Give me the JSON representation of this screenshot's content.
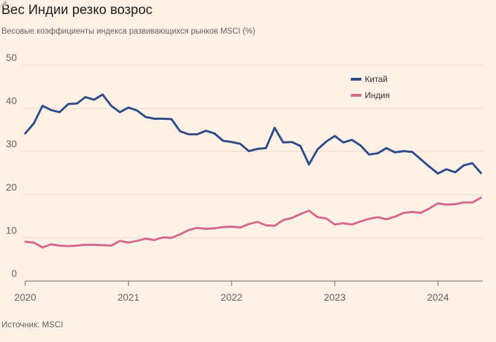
{
  "header": {
    "title": "Вес Индии резко возрос",
    "subtitle": "Весовые коэффициенты индекса развивающихся рынков MSCI (%)"
  },
  "footer": {
    "source": "Источник: MSCI"
  },
  "colors": {
    "background": "#fff1e5",
    "china": "#2e4a87",
    "india": "#d4698e",
    "grid": "#e6d9ce",
    "axis": "#66605c"
  },
  "chart_data": {
    "type": "line",
    "title": "Вес Индии резко возрос",
    "subtitle": "Весовые коэффициенты индекса развивающихся рынков MSCI (%)",
    "xlabel": "",
    "ylabel": "",
    "ylim": [
      0,
      50
    ],
    "xlim": [
      2020.0,
      2024.42
    ],
    "yticks": [
      0,
      10,
      20,
      30,
      40,
      50
    ],
    "xticks": [
      {
        "value": 2020,
        "label": "2020"
      },
      {
        "value": 2021,
        "label": "2021"
      },
      {
        "value": 2022,
        "label": "2022"
      },
      {
        "value": 2023,
        "label": "2023"
      },
      {
        "value": 2024,
        "label": "2024"
      }
    ],
    "legend_position": "top-right",
    "x": [
      2020.0,
      2020.083,
      2020.167,
      2020.25,
      2020.333,
      2020.417,
      2020.5,
      2020.583,
      2020.667,
      2020.75,
      2020.833,
      2020.917,
      2021.0,
      2021.083,
      2021.167,
      2021.25,
      2021.333,
      2021.417,
      2021.5,
      2021.583,
      2021.667,
      2021.75,
      2021.833,
      2021.917,
      2022.0,
      2022.083,
      2022.167,
      2022.25,
      2022.333,
      2022.417,
      2022.5,
      2022.583,
      2022.667,
      2022.75,
      2022.833,
      2022.917,
      2023.0,
      2023.083,
      2023.167,
      2023.25,
      2023.333,
      2023.417,
      2023.5,
      2023.583,
      2023.667,
      2023.75,
      2023.833,
      2023.917,
      2024.0,
      2024.083,
      2024.167,
      2024.25,
      2024.333,
      2024.417
    ],
    "series": [
      {
        "name": "Китай",
        "color": "#2e4a87",
        "values": [
          34.2,
          36.5,
          40.6,
          39.6,
          39.1,
          41.0,
          41.1,
          42.6,
          42.0,
          43.2,
          40.6,
          39.1,
          40.2,
          39.5,
          38.0,
          37.6,
          37.6,
          37.5,
          34.7,
          34.0,
          34.0,
          34.8,
          34.2,
          32.5,
          32.2,
          31.8,
          30.1,
          30.6,
          30.8,
          35.5,
          32.1,
          32.2,
          31.3,
          27.0,
          30.5,
          32.3,
          33.6,
          32.1,
          32.7,
          31.4,
          29.3,
          29.6,
          30.8,
          29.8,
          30.1,
          29.9,
          28.2,
          26.5,
          24.9,
          25.9,
          25.2,
          26.8,
          27.3,
          25.0
        ]
      },
      {
        "name": "Индия",
        "color": "#d4698e",
        "values": [
          9.1,
          8.9,
          7.8,
          8.5,
          8.2,
          8.1,
          8.2,
          8.4,
          8.4,
          8.3,
          8.2,
          9.3,
          8.9,
          9.3,
          9.8,
          9.5,
          10.1,
          10.0,
          10.8,
          11.8,
          12.3,
          12.1,
          12.2,
          12.5,
          12.6,
          12.4,
          13.2,
          13.7,
          12.9,
          12.8,
          14.1,
          14.6,
          15.5,
          16.3,
          14.8,
          14.5,
          13.1,
          13.4,
          13.1,
          13.8,
          14.4,
          14.8,
          14.3,
          14.9,
          15.8,
          16.0,
          15.8,
          16.8,
          18.0,
          17.7,
          17.8,
          18.2,
          18.2,
          19.3
        ]
      }
    ]
  }
}
